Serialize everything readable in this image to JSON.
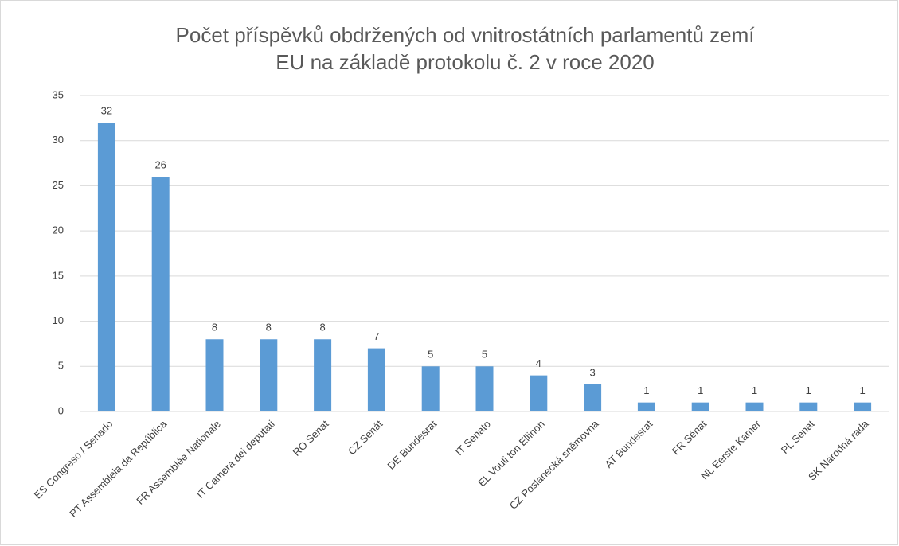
{
  "chart_data": {
    "type": "bar",
    "title": [
      "Počet příspěvků obdržených od vnitrostátních parlamentů zemí",
      "EU na základě protokolu č. 2 v roce 2020"
    ],
    "categories": [
      "ES Congreso / Senado",
      "PT Assembleia da República",
      "FR Assemblée Nationale",
      "IT Camera dei deputati",
      "RO Senat",
      "CZ Senát",
      "DE Bundesrat",
      "IT Senato",
      "EL Vouli ton Ellinon",
      "CZ Poslanecká sněmovna",
      "AT Bundesrat",
      "FR Sénat",
      "NL Eerste Kamer",
      "PL Senat",
      "SK Národná rada"
    ],
    "values": [
      32,
      26,
      8,
      8,
      8,
      7,
      5,
      5,
      4,
      3,
      1,
      1,
      1,
      1,
      1
    ],
    "color": "#5b9bd5",
    "ylim": [
      0,
      35
    ],
    "yticks": [
      0,
      5,
      10,
      15,
      20,
      25,
      30,
      35
    ],
    "grid": true,
    "data_labels": true
  }
}
